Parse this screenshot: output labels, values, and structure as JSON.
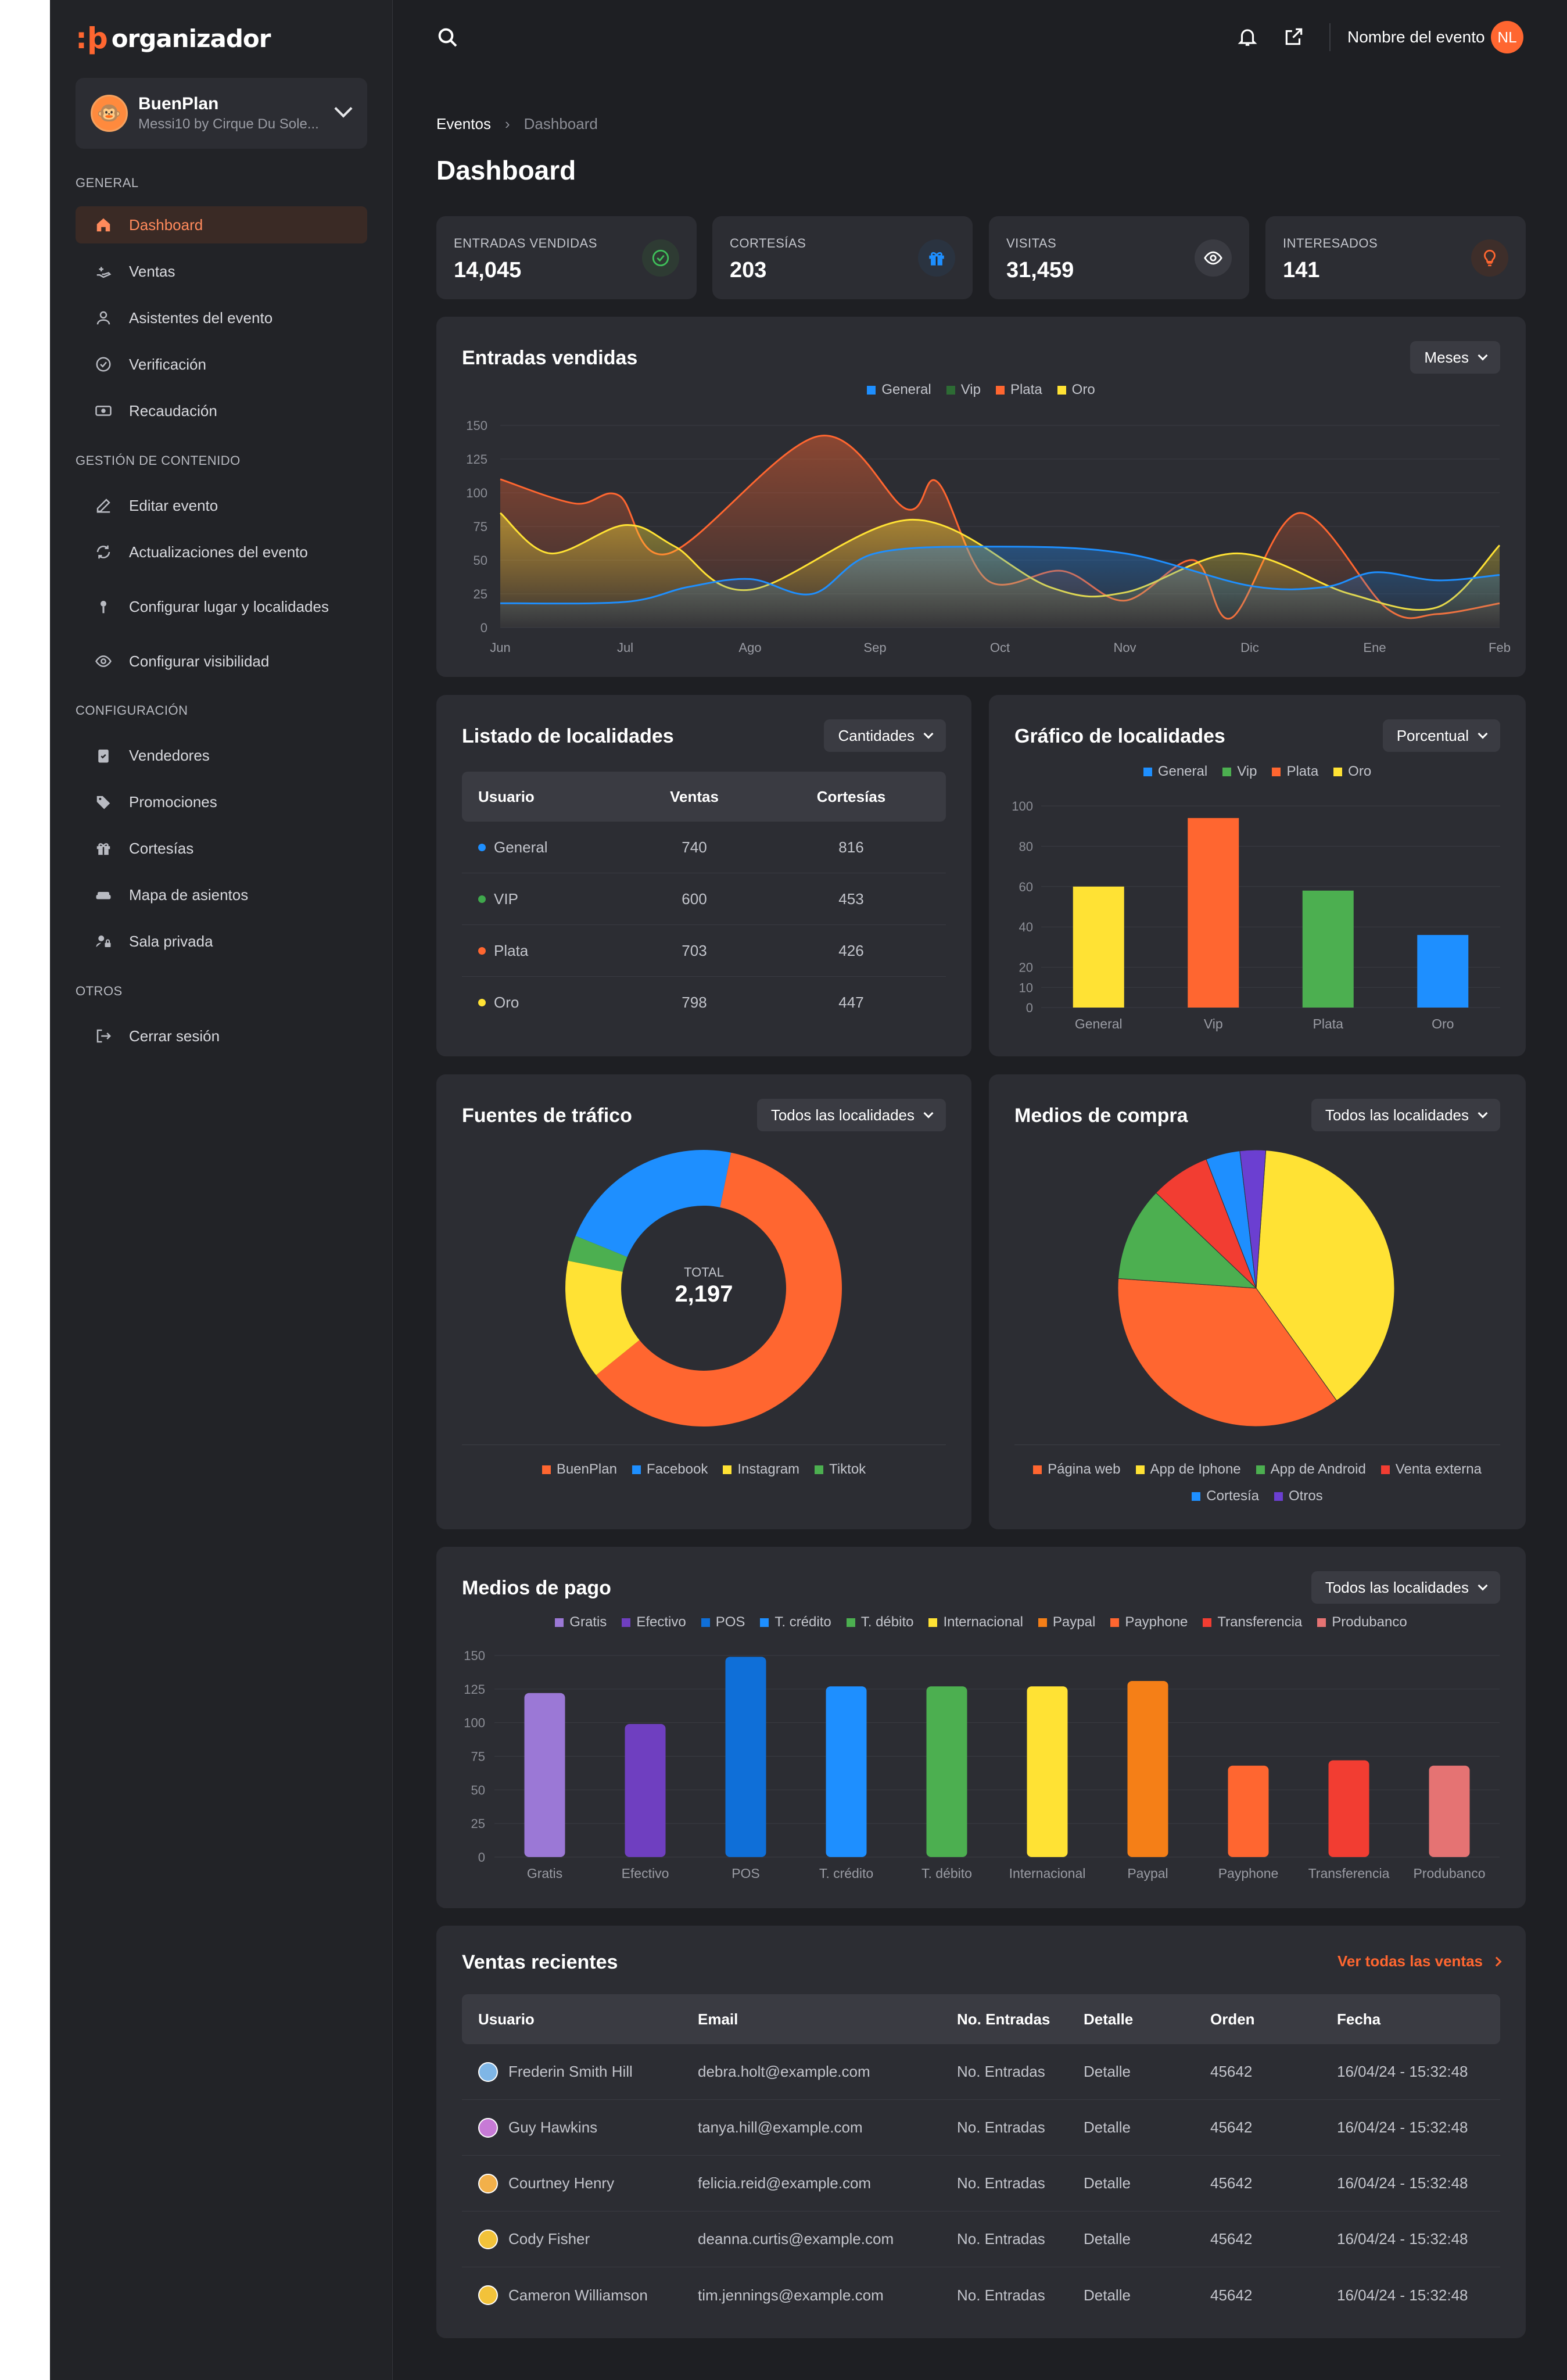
{
  "brand": {
    "logo_mark": ":þ",
    "logo_text": "organizador"
  },
  "org": {
    "name": "BuenPlan",
    "subtitle": "Messi10 by Cirque Du Sole..."
  },
  "sidebar": {
    "sections": [
      {
        "title": "GENERAL",
        "items": [
          {
            "label": "Dashboard",
            "icon": "home-icon",
            "active": true
          },
          {
            "label": "Ventas",
            "icon": "hand-money-icon"
          },
          {
            "label": "Asistentes del evento",
            "icon": "user-icon"
          },
          {
            "label": "Verificación",
            "icon": "check-circle-icon"
          },
          {
            "label": "Recaudación",
            "icon": "cash-icon"
          }
        ]
      },
      {
        "title": "GESTIÓN DE CONTENIDO",
        "items": [
          {
            "label": "Editar evento",
            "icon": "edit-icon"
          },
          {
            "label": "Actualizaciones del evento",
            "icon": "refresh-icon"
          },
          {
            "label": "Configurar lugar y localidades",
            "icon": "pin-icon"
          },
          {
            "label": "Configurar visibilidad",
            "icon": "eye-icon"
          }
        ]
      },
      {
        "title": "CONFIGURACIÓN",
        "items": [
          {
            "label": "Vendedores",
            "icon": "clipboard-icon"
          },
          {
            "label": "Promociones",
            "icon": "tag-icon"
          },
          {
            "label": "Cortesías",
            "icon": "gift-icon"
          },
          {
            "label": "Mapa de asientos",
            "icon": "sofa-icon"
          },
          {
            "label": "Sala privada",
            "icon": "user-lock-icon"
          }
        ]
      },
      {
        "title": "OTROS",
        "items": [
          {
            "label": "Cerrar sesión",
            "icon": "logout-icon"
          }
        ]
      }
    ]
  },
  "topbar": {
    "event_name": "Nombre del evento",
    "avatar_initials": "NL"
  },
  "breadcrumb": {
    "parent": "Eventos",
    "current": "Dashboard"
  },
  "page_title": "Dashboard",
  "stats": [
    {
      "label": "ENTRADAS VENDIDAS",
      "value": "14,045",
      "icon": "check-circle-icon",
      "color": "#3fbf5a",
      "bg": "#2e3b33"
    },
    {
      "label": "CORTESÍAS",
      "value": "203",
      "icon": "gift-icon",
      "color": "#1e8fff",
      "bg": "#2a3340"
    },
    {
      "label": "VISITAS",
      "value": "31,459",
      "icon": "eye-icon",
      "color": "#ffffff",
      "bg": "#3a3b42"
    },
    {
      "label": "INTERESADOS",
      "value": "141",
      "icon": "lightbulb-icon",
      "color": "#ff6630",
      "bg": "#3e2e2a"
    }
  ],
  "colors": {
    "general": "#1e8fff",
    "vip": "#3fa84c",
    "plata": "#ff6630",
    "oro": "#ffe234",
    "accent": "#ff6630"
  },
  "entradas": {
    "title": "Entradas vendidas",
    "dropdown": "Meses",
    "legend": [
      "General",
      "Vip",
      "Plata",
      "Oro"
    ]
  },
  "localidades_table": {
    "title": "Listado de localidades",
    "dropdown": "Cantidades",
    "headers": [
      "Usuario",
      "Ventas",
      "Cortesías"
    ],
    "rows": [
      {
        "name": "General",
        "ventas": "740",
        "cortesias": "816",
        "color": "#1e8fff"
      },
      {
        "name": "VIP",
        "ventas": "600",
        "cortesias": "453",
        "color": "#3fa84c"
      },
      {
        "name": "Plata",
        "ventas": "703",
        "cortesias": "426",
        "color": "#ff6630"
      },
      {
        "name": "Oro",
        "ventas": "798",
        "cortesias": "447",
        "color": "#ffe234"
      }
    ]
  },
  "localidades_chart": {
    "title": "Gráfico de localidades",
    "dropdown": "Porcentual",
    "legend": [
      "General",
      "Vip",
      "Plata",
      "Oro"
    ]
  },
  "trafico": {
    "title": "Fuentes de tráfico",
    "dropdown": "Todos las localidades",
    "total_label": "TOTAL",
    "total_value": "2,197",
    "legend": [
      "BuenPlan",
      "Facebook",
      "Instagram",
      "Tiktok"
    ]
  },
  "compra": {
    "title": "Medios de compra",
    "dropdown": "Todos las localidades",
    "legend": [
      "Página web",
      "App de Iphone",
      "App de Android",
      "Venta externa",
      "Cortesía",
      "Otros"
    ]
  },
  "pago": {
    "title": "Medios de pago",
    "dropdown": "Todos las localidades"
  },
  "ventas": {
    "title": "Ventas recientes",
    "link": "Ver todas las ventas",
    "headers": [
      "Usuario",
      "Email",
      "No. Entradas",
      "Detalle",
      "Orden",
      "Fecha"
    ],
    "rows": [
      {
        "user": "Frederin Smith Hill",
        "email": "debra.holt@example.com",
        "entradas": "No. Entradas",
        "detalle": "Detalle",
        "orden": "45642",
        "fecha": "16/04/24 - 15:32:48",
        "avatar_color": "#7fb6e6"
      },
      {
        "user": "Guy Hawkins",
        "email": "tanya.hill@example.com",
        "entradas": "No. Entradas",
        "detalle": "Detalle",
        "orden": "45642",
        "fecha": "16/04/24 - 15:32:48",
        "avatar_color": "#c77ad6"
      },
      {
        "user": "Courtney Henry",
        "email": "felicia.reid@example.com",
        "entradas": "No. Entradas",
        "detalle": "Detalle",
        "orden": "45642",
        "fecha": "16/04/24 - 15:32:48",
        "avatar_color": "#f2b04a"
      },
      {
        "user": "Cody Fisher",
        "email": "deanna.curtis@example.com",
        "entradas": "No. Entradas",
        "detalle": "Detalle",
        "orden": "45642",
        "fecha": "16/04/24 - 15:32:48",
        "avatar_color": "#f2c23a"
      },
      {
        "user": "Cameron Williamson",
        "email": "tim.jennings@example.com",
        "entradas": "No. Entradas",
        "detalle": "Detalle",
        "orden": "45642",
        "fecha": "16/04/24 - 15:32:48",
        "avatar_color": "#f2c23a"
      }
    ]
  },
  "chart_data": [
    {
      "type": "area",
      "title": "Entradas vendidas",
      "x": [
        "Jun",
        "Jul",
        "Ago",
        "Sep",
        "Oct",
        "Nov",
        "Dic",
        "Ene",
        "Feb"
      ],
      "ylim": [
        0,
        150
      ],
      "yticks": [
        0,
        25,
        50,
        75,
        100,
        125,
        150
      ],
      "series": [
        {
          "name": "General",
          "color": "#1e8fff",
          "x": [
            0,
            1,
            1.5,
            2,
            2.5,
            3,
            4,
            5,
            6,
            6.6,
            7,
            7.5,
            8
          ],
          "values": [
            18,
            19,
            30,
            36,
            25,
            55,
            60,
            55,
            31,
            30,
            41,
            35,
            39
          ]
        },
        {
          "name": "Plata",
          "color": "#ff6630",
          "x": [
            0,
            0.6,
            0.95,
            1.35,
            2.55,
            3.25,
            3.5,
            3.9,
            4.5,
            5,
            5.55,
            5.85,
            6.4,
            7.1,
            7.5,
            8
          ],
          "values": [
            110,
            92,
            98,
            55,
            142,
            88,
            108,
            35,
            42,
            20,
            50,
            7,
            85,
            14,
            10,
            18
          ]
        },
        {
          "name": "Oro",
          "color": "#ffe234",
          "x": [
            0,
            0.4,
            1.0,
            1.4,
            2.0,
            3.3,
            4.4,
            5.0,
            5.9,
            6.8,
            7.5,
            8
          ],
          "values": [
            85,
            55,
            76,
            60,
            28,
            80,
            30,
            26,
            55,
            25,
            15,
            61
          ]
        }
      ],
      "legend": [
        "General",
        "Vip",
        "Plata",
        "Oro"
      ],
      "grid": true,
      "legend_position": "top"
    },
    {
      "type": "bar",
      "title": "Gráfico de localidades",
      "categories": [
        "General",
        "Vip",
        "Plata",
        "Oro"
      ],
      "values": [
        60,
        94,
        58,
        36
      ],
      "colors": [
        "#ffe234",
        "#ff6630",
        "#4caf50",
        "#1e8fff"
      ],
      "ylim": [
        0,
        100
      ],
      "yticks": [
        0,
        10,
        20,
        40,
        60,
        80,
        100
      ],
      "legend": [
        "General",
        "Vip",
        "Plata",
        "Oro"
      ]
    },
    {
      "type": "pie",
      "title": "Fuentes de tráfico",
      "donut": true,
      "categories": [
        "BuenPlan",
        "Instagram",
        "Tiktok",
        "Facebook"
      ],
      "values": [
        61,
        14,
        3,
        22
      ],
      "colors": [
        "#ff6630",
        "#ffe234",
        "#4caf50",
        "#1e8fff"
      ]
    },
    {
      "type": "pie",
      "title": "Medios de compra",
      "categories": [
        "App de Iphone",
        "Página web",
        "App de Android",
        "Venta externa",
        "Cortesía",
        "Otros"
      ],
      "values": [
        39,
        36,
        11,
        7,
        4,
        3
      ],
      "colors": [
        "#ffe234",
        "#ff6630",
        "#4caf50",
        "#f23d32",
        "#1e8fff",
        "#6b3fd1"
      ]
    },
    {
      "type": "bar",
      "title": "Medios de pago",
      "categories": [
        "Gratis",
        "Efectivo",
        "POS",
        "T. crédito",
        "T. débito",
        "Internacional",
        "Paypal",
        "Payphone",
        "Transferencia",
        "Produbanco"
      ],
      "values": [
        122,
        99,
        149,
        127,
        127,
        127,
        131,
        68,
        72,
        68
      ],
      "colors": [
        "#9b78d6",
        "#6f3fc0",
        "#0f6fd8",
        "#1e8fff",
        "#4caf50",
        "#ffe234",
        "#f57f17",
        "#ff6630",
        "#f23d32",
        "#e57373"
      ],
      "ylim": [
        0,
        150
      ],
      "yticks": [
        0,
        25,
        50,
        75,
        100,
        125,
        150
      ],
      "legend": [
        "Gratis",
        "Efectivo",
        "POS",
        "T. crédito",
        "T. débito",
        "Internacional",
        "Paypal",
        "Payphone",
        "Transferencia",
        "Produbanco"
      ]
    }
  ]
}
